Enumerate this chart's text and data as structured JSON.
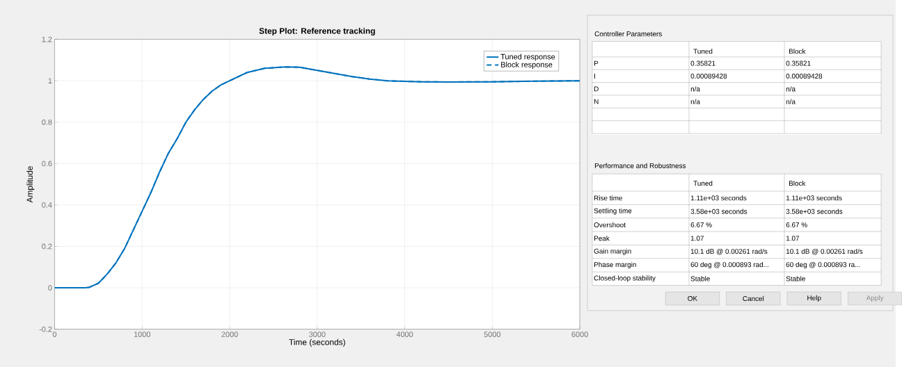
{
  "chart_data": [
    {
      "type": "line",
      "title": "Step Plot: Reference tracking",
      "xlabel": "Time (seconds)",
      "ylabel": "Amplitude",
      "x": [
        0,
        100,
        200,
        300,
        350,
        400,
        500,
        600,
        700,
        800,
        900,
        1000,
        1100,
        1200,
        1300,
        1400,
        1500,
        1600,
        1700,
        1800,
        1900,
        2000,
        2200,
        2400,
        2640,
        2800,
        3000,
        3200,
        3400,
        3600,
        3800,
        4000,
        4200,
        4500,
        5000,
        5500,
        6000
      ],
      "series": [
        {
          "name": "Tuned response",
          "color": "#0072bd",
          "line_style": "solid",
          "values": [
            0,
            0,
            0,
            0,
            0,
            0.003,
            0.022,
            0.066,
            0.12,
            0.19,
            0.28,
            0.37,
            0.46,
            0.56,
            0.65,
            0.72,
            0.8,
            0.86,
            0.91,
            0.95,
            0.98,
            1.0,
            1.04,
            1.06,
            1.067,
            1.065,
            1.05,
            1.035,
            1.02,
            1.008,
            1.0,
            0.997,
            0.995,
            0.994,
            0.995,
            0.998,
            1.0
          ]
        },
        {
          "name": "Block response",
          "color": "#0072bd",
          "line_style": "dashed",
          "values": [
            0,
            0,
            0,
            0,
            0,
            0.003,
            0.022,
            0.066,
            0.12,
            0.19,
            0.28,
            0.37,
            0.46,
            0.56,
            0.65,
            0.72,
            0.8,
            0.86,
            0.91,
            0.95,
            0.98,
            1.0,
            1.04,
            1.06,
            1.067,
            1.065,
            1.05,
            1.035,
            1.02,
            1.008,
            1.0,
            0.997,
            0.995,
            0.994,
            0.995,
            0.998,
            1.0
          ]
        }
      ],
      "xlim": [
        0,
        6000
      ],
      "xticks": [
        0,
        1000,
        2000,
        3000,
        4000,
        5000,
        6000
      ],
      "ylim": [
        -0.2,
        1.2
      ],
      "yticks": [
        -0.2,
        0,
        0.2,
        0.4,
        0.6,
        0.8,
        1,
        1.2
      ],
      "grid": true,
      "legend": "top right"
    },
    {
      "type": "other",
      "title": "Controller Parameters",
      "subtitle": "Performance and Robustness",
      "annotations": [
        "Tuned",
        "Block",
        "P",
        "0.35821",
        "0.35821",
        "I",
        "0.00089428",
        "0.00089428",
        "D",
        "n/a",
        "n/a",
        "N",
        "n/a",
        "n/a",
        "Tuned",
        "Block",
        "Rise time",
        "1.11e+03 seconds",
        "1.11e+03 seconds",
        "Settling time",
        "3.58e+03 seconds",
        "3.58e+03 seconds",
        "Overshoot",
        "6.67 %",
        "6.67 %",
        "Peak",
        "1.07",
        "1.07",
        "Gain margin",
        "10.1 dB @ 0.00261 rad/s",
        "10.1 dB @ 0.00261 rad/s",
        "Phase margin",
        "60 deg @ 0.000893 rad...",
        "60 deg @ 0.000893 ra...",
        "Closed-loop stability",
        "Stable",
        "Stable",
        "OK",
        "Cancel",
        "Help",
        "Apply"
      ]
    }
  ]
}
